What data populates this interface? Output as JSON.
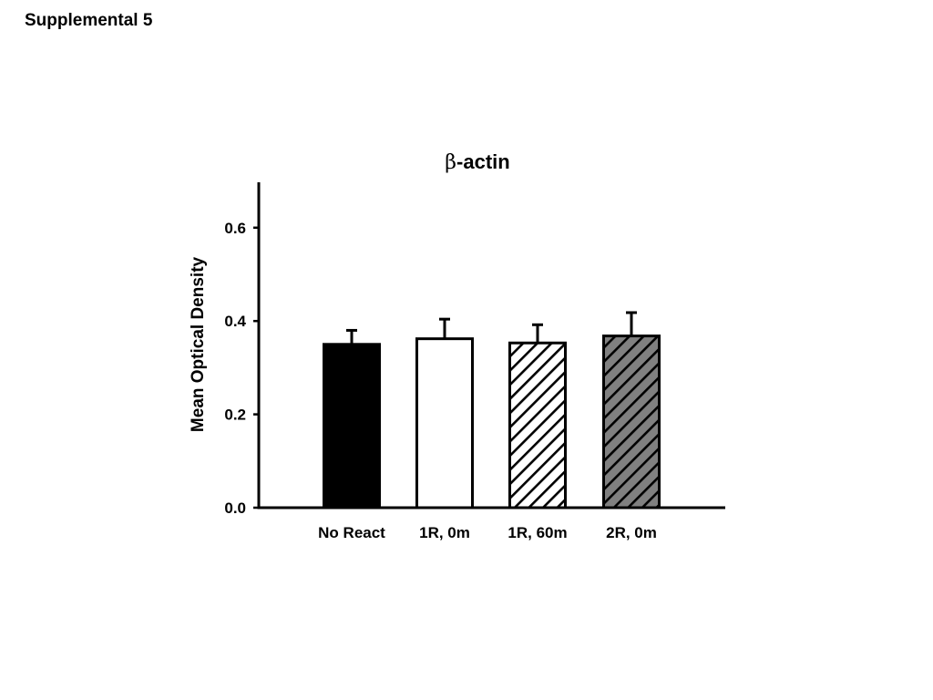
{
  "page": {
    "title": "Supplemental 5"
  },
  "chart_data": {
    "type": "bar",
    "title_symbol": "β",
    "title_rest": "-actin",
    "xlabel": "",
    "ylabel": "Mean Optical Density",
    "ylim": [
      0.0,
      0.7
    ],
    "yticks": [
      "0.0",
      "0.2",
      "0.4",
      "0.6"
    ],
    "ytick_values": [
      0.0,
      0.2,
      0.4,
      0.6
    ],
    "grid": false,
    "legend": "none",
    "categories": [
      "No React",
      "1R, 0m",
      "1R, 60m",
      "2R, 0m"
    ],
    "values": [
      0.35,
      0.362,
      0.353,
      0.368
    ],
    "errors": [
      0.03,
      0.042,
      0.039,
      0.05
    ],
    "fills": [
      "solid-black",
      "white",
      "white-hatched",
      "gray-hatched"
    ],
    "colors": {
      "black": "#000000",
      "white": "#ffffff",
      "gray": "#808080"
    }
  }
}
